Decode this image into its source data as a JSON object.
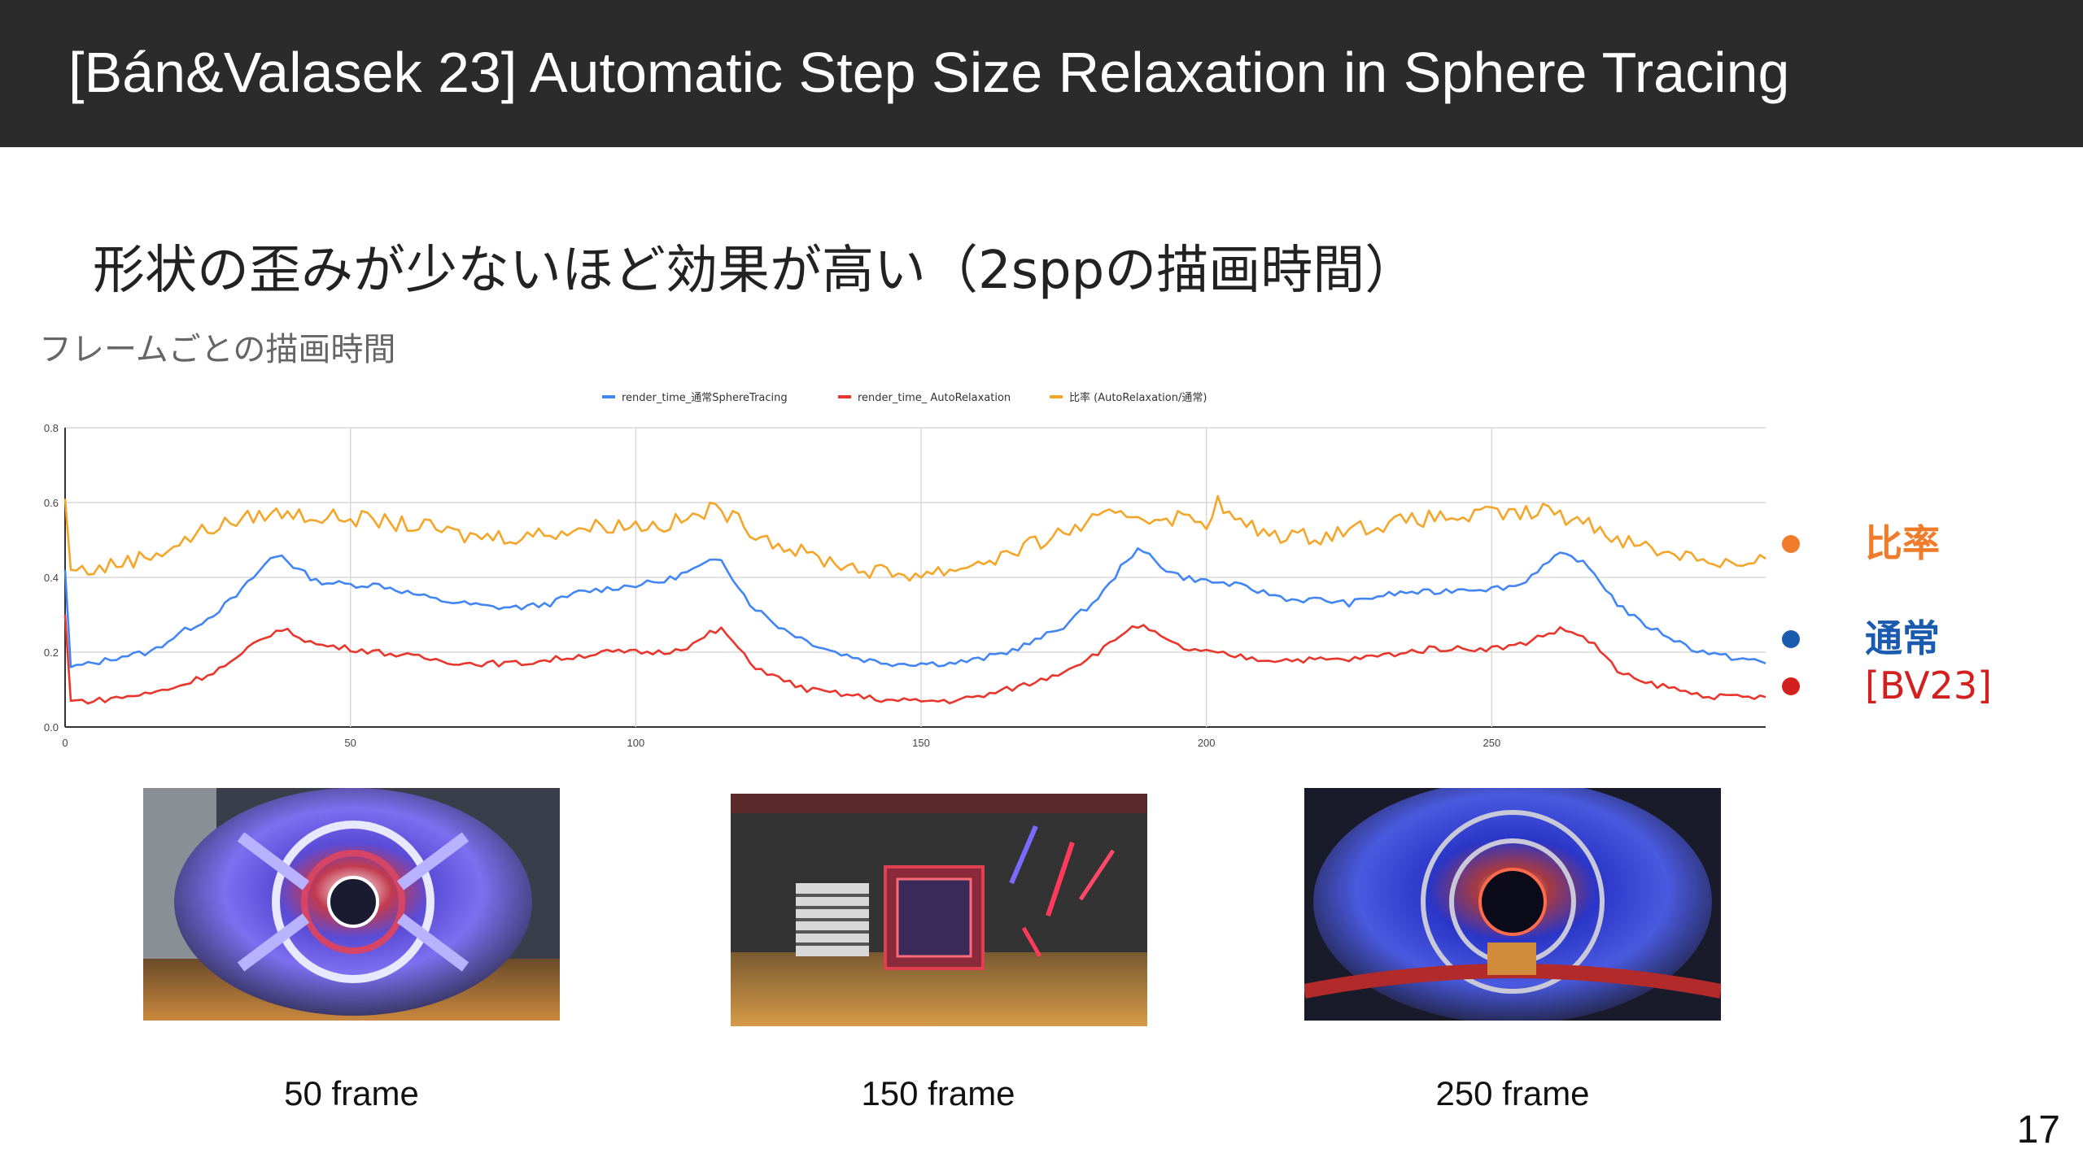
{
  "slide": {
    "title": "[Bán&Valasek 23] Automatic Step Size Relaxation in Sphere Tracing",
    "subtitle": "形状の歪みが少ないほど効果が高い（2sppの描画時間）",
    "chart_heading": "フレームごとの描画時間",
    "page_number": "17"
  },
  "right_legend": [
    {
      "label": "比率",
      "color": "#f07b2a",
      "bold": true
    },
    {
      "label": "通常",
      "color": "#1a5bb0",
      "bold": true
    },
    {
      "label": "[BV23]",
      "color": "#d3201f",
      "bold": false
    }
  ],
  "thumbnails": [
    {
      "caption": "50 frame",
      "icon": "fisheye-render-icon"
    },
    {
      "caption": "150 frame",
      "icon": "cube-room-render-icon"
    },
    {
      "caption": "250 frame",
      "icon": "fisheye-render-icon"
    }
  ],
  "chart_data": {
    "type": "line",
    "title": "",
    "xlabel": "",
    "ylabel": "",
    "xlim": [
      0,
      298
    ],
    "ylim": [
      0,
      0.8
    ],
    "x_ticks": [
      0,
      50,
      100,
      150,
      200,
      250
    ],
    "y_ticks": [
      0.0,
      0.2,
      0.4,
      0.6,
      0.8
    ],
    "x_tick_labels": [
      "0",
      "50",
      "100",
      "150",
      "200",
      "250"
    ],
    "y_tick_labels": [
      "0.0",
      "0.2",
      "0.4",
      "0.6",
      "0.8"
    ],
    "grid": true,
    "legend_position": "top-center",
    "series": [
      {
        "name": "render_time_通常SphereTracing",
        "color": "#4285f4",
        "points": [
          [
            0,
            0.42
          ],
          [
            1,
            0.16
          ],
          [
            5,
            0.17
          ],
          [
            10,
            0.19
          ],
          [
            15,
            0.2
          ],
          [
            20,
            0.25
          ],
          [
            25,
            0.29
          ],
          [
            30,
            0.35
          ],
          [
            33,
            0.4
          ],
          [
            36,
            0.45
          ],
          [
            38,
            0.46
          ],
          [
            40,
            0.43
          ],
          [
            44,
            0.39
          ],
          [
            50,
            0.38
          ],
          [
            55,
            0.38
          ],
          [
            60,
            0.36
          ],
          [
            65,
            0.34
          ],
          [
            70,
            0.33
          ],
          [
            75,
            0.32
          ],
          [
            80,
            0.32
          ],
          [
            85,
            0.33
          ],
          [
            90,
            0.36
          ],
          [
            95,
            0.37
          ],
          [
            100,
            0.38
          ],
          [
            105,
            0.39
          ],
          [
            110,
            0.42
          ],
          [
            113,
            0.44
          ],
          [
            115,
            0.45
          ],
          [
            117,
            0.4
          ],
          [
            120,
            0.33
          ],
          [
            125,
            0.27
          ],
          [
            130,
            0.23
          ],
          [
            135,
            0.2
          ],
          [
            140,
            0.18
          ],
          [
            145,
            0.17
          ],
          [
            150,
            0.17
          ],
          [
            155,
            0.17
          ],
          [
            160,
            0.18
          ],
          [
            165,
            0.2
          ],
          [
            170,
            0.23
          ],
          [
            175,
            0.27
          ],
          [
            180,
            0.33
          ],
          [
            183,
            0.38
          ],
          [
            186,
            0.45
          ],
          [
            188,
            0.47
          ],
          [
            190,
            0.46
          ],
          [
            193,
            0.42
          ],
          [
            196,
            0.4
          ],
          [
            200,
            0.39
          ],
          [
            205,
            0.38
          ],
          [
            210,
            0.36
          ],
          [
            215,
            0.34
          ],
          [
            220,
            0.34
          ],
          [
            225,
            0.33
          ],
          [
            230,
            0.35
          ],
          [
            235,
            0.36
          ],
          [
            240,
            0.36
          ],
          [
            245,
            0.37
          ],
          [
            250,
            0.37
          ],
          [
            255,
            0.38
          ],
          [
            258,
            0.42
          ],
          [
            262,
            0.46
          ],
          [
            265,
            0.45
          ],
          [
            268,
            0.41
          ],
          [
            272,
            0.33
          ],
          [
            276,
            0.28
          ],
          [
            280,
            0.25
          ],
          [
            285,
            0.21
          ],
          [
            290,
            0.19
          ],
          [
            295,
            0.18
          ],
          [
            298,
            0.17
          ]
        ]
      },
      {
        "name": "render_time_ AutoRelaxation",
        "color": "#e8362c",
        "points": [
          [
            0,
            0.3
          ],
          [
            1,
            0.07
          ],
          [
            5,
            0.07
          ],
          [
            10,
            0.08
          ],
          [
            15,
            0.09
          ],
          [
            20,
            0.11
          ],
          [
            25,
            0.14
          ],
          [
            30,
            0.18
          ],
          [
            33,
            0.22
          ],
          [
            36,
            0.25
          ],
          [
            38,
            0.26
          ],
          [
            40,
            0.25
          ],
          [
            44,
            0.22
          ],
          [
            50,
            0.21
          ],
          [
            55,
            0.2
          ],
          [
            60,
            0.19
          ],
          [
            65,
            0.18
          ],
          [
            70,
            0.17
          ],
          [
            75,
            0.17
          ],
          [
            80,
            0.17
          ],
          [
            85,
            0.18
          ],
          [
            90,
            0.19
          ],
          [
            95,
            0.2
          ],
          [
            100,
            0.2
          ],
          [
            105,
            0.2
          ],
          [
            110,
            0.22
          ],
          [
            113,
            0.25
          ],
          [
            115,
            0.26
          ],
          [
            117,
            0.23
          ],
          [
            120,
            0.17
          ],
          [
            125,
            0.13
          ],
          [
            130,
            0.1
          ],
          [
            135,
            0.09
          ],
          [
            140,
            0.08
          ],
          [
            145,
            0.07
          ],
          [
            150,
            0.07
          ],
          [
            155,
            0.07
          ],
          [
            160,
            0.08
          ],
          [
            165,
            0.1
          ],
          [
            170,
            0.12
          ],
          [
            175,
            0.15
          ],
          [
            180,
            0.19
          ],
          [
            183,
            0.22
          ],
          [
            186,
            0.26
          ],
          [
            188,
            0.27
          ],
          [
            190,
            0.26
          ],
          [
            193,
            0.23
          ],
          [
            196,
            0.21
          ],
          [
            200,
            0.2
          ],
          [
            205,
            0.19
          ],
          [
            210,
            0.18
          ],
          [
            215,
            0.18
          ],
          [
            220,
            0.18
          ],
          [
            225,
            0.18
          ],
          [
            230,
            0.19
          ],
          [
            235,
            0.2
          ],
          [
            240,
            0.21
          ],
          [
            245,
            0.21
          ],
          [
            250,
            0.21
          ],
          [
            255,
            0.22
          ],
          [
            258,
            0.24
          ],
          [
            262,
            0.26
          ],
          [
            265,
            0.25
          ],
          [
            268,
            0.22
          ],
          [
            272,
            0.15
          ],
          [
            276,
            0.12
          ],
          [
            280,
            0.11
          ],
          [
            285,
            0.09
          ],
          [
            290,
            0.08
          ],
          [
            295,
            0.08
          ],
          [
            298,
            0.08
          ]
        ]
      },
      {
        "name": "比率 (AutoRelaxation/通常)",
        "color": "#f4a62a",
        "points": [
          [
            0,
            0.61
          ],
          [
            1,
            0.42
          ],
          [
            5,
            0.42
          ],
          [
            10,
            0.44
          ],
          [
            15,
            0.46
          ],
          [
            20,
            0.49
          ],
          [
            25,
            0.53
          ],
          [
            30,
            0.55
          ],
          [
            35,
            0.57
          ],
          [
            40,
            0.57
          ],
          [
            45,
            0.56
          ],
          [
            50,
            0.56
          ],
          [
            55,
            0.55
          ],
          [
            60,
            0.54
          ],
          [
            65,
            0.53
          ],
          [
            70,
            0.51
          ],
          [
            75,
            0.51
          ],
          [
            80,
            0.51
          ],
          [
            85,
            0.52
          ],
          [
            90,
            0.53
          ],
          [
            95,
            0.54
          ],
          [
            100,
            0.54
          ],
          [
            105,
            0.54
          ],
          [
            110,
            0.56
          ],
          [
            113,
            0.58
          ],
          [
            115,
            0.58
          ],
          [
            117,
            0.56
          ],
          [
            120,
            0.53
          ],
          [
            125,
            0.49
          ],
          [
            130,
            0.46
          ],
          [
            135,
            0.44
          ],
          [
            140,
            0.42
          ],
          [
            145,
            0.41
          ],
          [
            150,
            0.41
          ],
          [
            155,
            0.42
          ],
          [
            160,
            0.44
          ],
          [
            165,
            0.46
          ],
          [
            170,
            0.49
          ],
          [
            175,
            0.52
          ],
          [
            180,
            0.55
          ],
          [
            183,
            0.56
          ],
          [
            186,
            0.57
          ],
          [
            190,
            0.56
          ],
          [
            195,
            0.56
          ],
          [
            200,
            0.55
          ],
          [
            202,
            0.6
          ],
          [
            205,
            0.55
          ],
          [
            210,
            0.52
          ],
          [
            215,
            0.51
          ],
          [
            220,
            0.51
          ],
          [
            225,
            0.53
          ],
          [
            230,
            0.54
          ],
          [
            235,
            0.55
          ],
          [
            240,
            0.56
          ],
          [
            245,
            0.56
          ],
          [
            250,
            0.57
          ],
          [
            255,
            0.57
          ],
          [
            258,
            0.57
          ],
          [
            260,
            0.59
          ],
          [
            262,
            0.56
          ],
          [
            265,
            0.56
          ],
          [
            270,
            0.52
          ],
          [
            275,
            0.49
          ],
          [
            280,
            0.47
          ],
          [
            285,
            0.46
          ],
          [
            290,
            0.44
          ],
          [
            295,
            0.43
          ],
          [
            298,
            0.45
          ]
        ]
      }
    ]
  }
}
